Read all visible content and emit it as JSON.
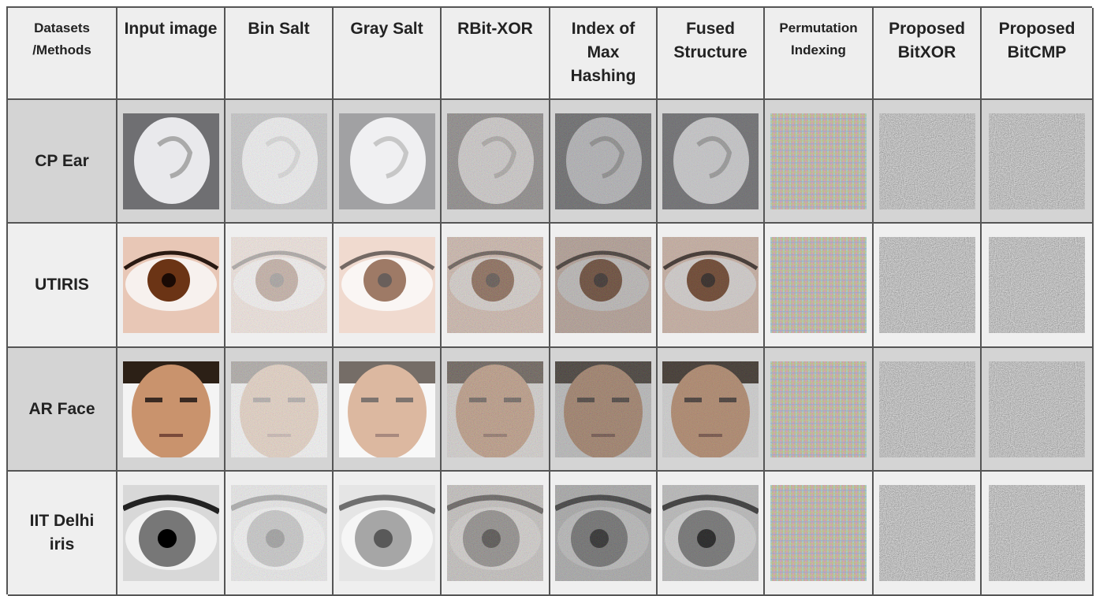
{
  "table": {
    "header": [
      "Datasets /Methods",
      "Input image",
      "Bin Salt",
      "Gray Salt",
      "RBit-XOR",
      "Index of Max Hashing",
      "Fused Structure",
      "Permutation Indexing",
      "Proposed BitXOR",
      "Proposed BitCMP"
    ],
    "rows": [
      "CP Ear",
      "UTIRIS",
      "AR Face",
      "IIT Delhi iris"
    ]
  }
}
